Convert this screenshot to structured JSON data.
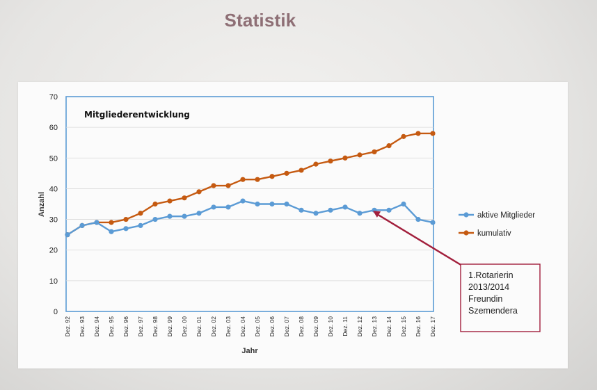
{
  "slide": {
    "title": "Statistik"
  },
  "colors": {
    "aktive": "#5b9bd5",
    "kumulativ": "#c55a11",
    "plot_border": "#5b9bd5",
    "grid": "#d9d9d9",
    "annotation": "#a21f3c"
  },
  "chart_data": {
    "type": "line",
    "title": "Mitgliederentwicklung",
    "xlabel": "Jahr",
    "ylabel": "Anzahl",
    "ylim": [
      0,
      70
    ],
    "yticks": [
      0,
      10,
      20,
      30,
      40,
      50,
      60,
      70
    ],
    "grid": true,
    "legend_position": "right",
    "categories": [
      "Dez. 92",
      "Dez. 93",
      "Dez. 94",
      "Dez. 95",
      "Dez. 96",
      "Dez. 97",
      "Dez. 98",
      "Dez. 99",
      "Dez. 00",
      "Dez. 01",
      "Dez. 02",
      "Dez. 03",
      "Dez. 04",
      "Dez. 05",
      "Dez. 06",
      "Dez. 07",
      "Dez. 08",
      "Dez. 09",
      "Dez. 10",
      "Dez. 11",
      "Dez. 12",
      "Dez. 13",
      "Dez. 14",
      "Dez. 15",
      "Dez. 16",
      "Dez. 17"
    ],
    "series": [
      {
        "name": "aktive Mitglieder",
        "color": "#5b9bd5",
        "values": [
          25,
          28,
          29,
          26,
          27,
          28,
          30,
          31,
          31,
          32,
          34,
          34,
          36,
          35,
          35,
          35,
          33,
          32,
          33,
          34,
          32,
          33,
          33,
          35,
          30,
          29
        ]
      },
      {
        "name": "kumulativ",
        "color": "#c55a11",
        "values": [
          25,
          28,
          29,
          29,
          30,
          32,
          35,
          36,
          37,
          39,
          41,
          41,
          43,
          43,
          44,
          45,
          46,
          48,
          49,
          50,
          51,
          52,
          54,
          57,
          58,
          58
        ]
      }
    ],
    "annotation": {
      "lines": [
        "1.Rotarierin",
        "2013/2014",
        "Freundin",
        "Szemendera"
      ],
      "category": "Dez. 13",
      "series": "aktive Mitglieder"
    }
  }
}
